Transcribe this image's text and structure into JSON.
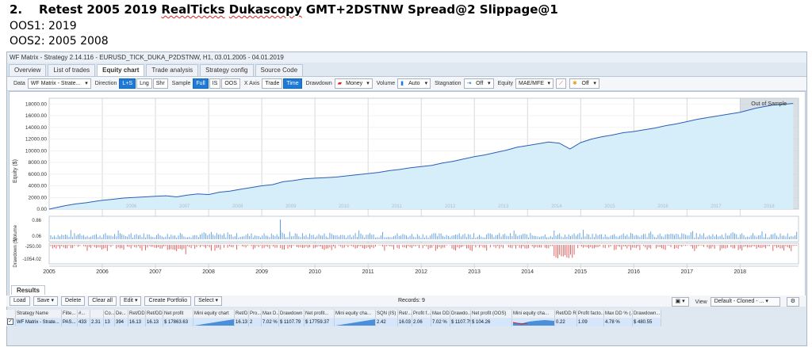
{
  "doc": {
    "number": "2.",
    "title_pre": "Retest 2005 2019 ",
    "title_squig": "RealTicks",
    "title_mid": " ",
    "title_squig2": "Dukascopy",
    "title_post": " GMT+2DSTNW Spread@2 Slippage@1",
    "oos1": "OOS1: 2019",
    "oos2": "OOS2: 2005 2008"
  },
  "app": {
    "title": "WF Matrix - Strategy 2.14.116 - EURUSD_TICK_DUKA_P2DSTNW, H1, 03.01.2005 - 04.01.2019",
    "tabs": [
      "Overview",
      "List of trades",
      "Equity chart",
      "Trade analysis",
      "Strategy config",
      "Source Code"
    ],
    "active_tab": 2
  },
  "toolbar": {
    "data_label": "Data",
    "data_value": "WF Matrix - Strate...",
    "direction_label": "Direction",
    "dir_ls": "L+S",
    "dir_lng": "Lng",
    "dir_shr": "Shr",
    "sample_label": "Sample",
    "sample_full": "Full",
    "sample_is": "IS",
    "sample_oos": "OOS",
    "xaxis_label": "X Axis",
    "xaxis_trade": "Trade",
    "xaxis_time": "Time",
    "drawdown_label": "Drawdown",
    "drawdown_value": "Money",
    "volume_label": "Volume",
    "volume_value": "Auto",
    "stagnation_label": "Stagnation",
    "stagnation_value": "Off",
    "equity_label": "Equity",
    "equity_value": "MAE/MFE",
    "equity_extra": "Off"
  },
  "chart_data": {
    "type": "line",
    "ylabel": "Equity ($)",
    "yticks": [
      "18000.00",
      "16000.00",
      "14000.00",
      "12000.00",
      "10000.00",
      "8000.00",
      "6000.00",
      "4000.00",
      "2000.00",
      "0.00"
    ],
    "ylim": [
      0,
      19000
    ],
    "xlim": [
      2005.0,
      2019.1
    ],
    "xticks": [
      "2005",
      "2006",
      "2007",
      "2008",
      "2009",
      "2010",
      "2011",
      "2012",
      "2013",
      "2014",
      "2015",
      "2016",
      "2017",
      "2018"
    ],
    "inner_year_labels": [
      "2006",
      "2007",
      "2008",
      "2009",
      "2010",
      "2011",
      "2012",
      "2013",
      "2014",
      "2015",
      "2016",
      "2017",
      "2018"
    ],
    "oos_label": "Out of Sample",
    "oos_start": 2018.0,
    "x": [
      2005.0,
      2005.1,
      2005.3,
      2005.5,
      2005.7,
      2005.9,
      2006.0,
      2006.2,
      2006.4,
      2006.6,
      2006.8,
      2007.0,
      2007.2,
      2007.4,
      2007.6,
      2007.8,
      2008.0,
      2008.2,
      2008.4,
      2008.6,
      2008.8,
      2009.0,
      2009.2,
      2009.4,
      2009.6,
      2009.8,
      2010.0,
      2010.2,
      2010.4,
      2010.6,
      2010.8,
      2011.0,
      2011.2,
      2011.4,
      2011.6,
      2011.8,
      2012.0,
      2012.2,
      2012.4,
      2012.6,
      2012.8,
      2013.0,
      2013.2,
      2013.4,
      2013.6,
      2013.8,
      2014.0,
      2014.2,
      2014.4,
      2014.6,
      2014.8,
      2015.0,
      2015.2,
      2015.4,
      2015.6,
      2015.8,
      2016.0,
      2016.2,
      2016.4,
      2016.6,
      2016.8,
      2017.0,
      2017.2,
      2017.4,
      2017.6,
      2017.8,
      2018.0,
      2018.3,
      2018.6,
      2019.0
    ],
    "y": [
      0,
      200,
      600,
      900,
      1100,
      1400,
      1500,
      1700,
      1900,
      2000,
      2100,
      2200,
      2300,
      2100,
      2400,
      2600,
      2500,
      2900,
      3100,
      3400,
      3700,
      4000,
      4200,
      4700,
      4900,
      5200,
      5300,
      5400,
      5500,
      5700,
      5900,
      6100,
      6300,
      6600,
      6800,
      7100,
      7300,
      7500,
      7900,
      8200,
      8600,
      9000,
      9300,
      9700,
      10100,
      10600,
      10900,
      11200,
      11500,
      11300,
      10300,
      11400,
      12000,
      12400,
      12700,
      13100,
      13300,
      13600,
      13900,
      14300,
      14600,
      15000,
      15400,
      15700,
      16000,
      16300,
      16600,
      17300,
      17800,
      18100
    ],
    "volume_label": "Volume",
    "volume_ticks": [
      "0.86",
      "0.06"
    ],
    "drawdown_label": "Drawdown ($)",
    "drawdown_ticks": [
      "-250.00",
      "-1054.02"
    ]
  },
  "results": {
    "tab": "Results",
    "buttons": [
      "Load",
      "Save",
      "Delete",
      "Clear all",
      "Edit",
      "Create Portfolio",
      "Select"
    ],
    "records": "Records: 9",
    "view_label": "View",
    "view_value": "Default - Cloned - ...",
    "columns": [
      "",
      "Strategy Name",
      "Filte...",
      "#...",
      "",
      "Co...",
      "De...",
      "Ret/DD...",
      "Ret/DD...",
      "Net profit",
      "Mini equity chart",
      "Ret/D...",
      "Pro...",
      "Max D...",
      "Drawdown",
      "Net profit...",
      "Mini equity cha...",
      "SQN (IS)",
      "Ret/...",
      "Profit f...",
      "Max DD...",
      "Drawdo...",
      "Net profit (OOS)",
      "Mini equity cha...",
      "Ret/DD R...",
      "Profit facto...",
      "Max DD % (...",
      "Drawdown..."
    ],
    "row": [
      "",
      "WF Matrix - Strate...",
      "PAS...",
      "433",
      "2.31",
      "13",
      "394",
      "16.13",
      "16.13",
      "$ 17863.63",
      "",
      "16.13",
      "2",
      "7.02 %",
      "$ 1107.79",
      "$ 17759.37",
      "",
      "2.42",
      "16.03",
      "2.06",
      "7.02 %",
      "$ 1107.79",
      "$ 104.26",
      "",
      "0.22",
      "1.09",
      "4.78 %",
      "$ 480.55"
    ]
  }
}
